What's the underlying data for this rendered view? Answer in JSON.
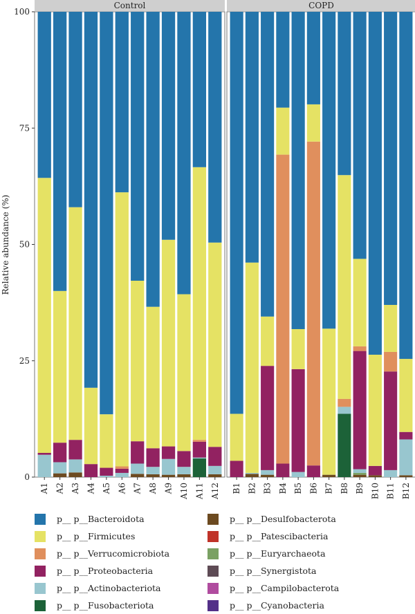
{
  "chart_data": {
    "type": "bar",
    "stacked": true,
    "ylabel": "Relative abundance (%)",
    "ylim": [
      0,
      100
    ],
    "yticks": [
      0,
      25,
      50,
      75,
      100
    ],
    "grid": false,
    "legend_position": "bottom",
    "panels": [
      {
        "name": "Control",
        "categories": [
          "A1",
          "A2",
          "A3",
          "A4",
          "A5",
          "A6",
          "A7",
          "A8",
          "A9",
          "A10",
          "A11",
          "A12"
        ],
        "series": [
          {
            "name": "p__ p__Fusobacteriota",
            "values": [
              0,
              0,
              0,
              0,
              0,
              0,
              0,
              0,
              0,
              0,
              4.0,
              0
            ]
          },
          {
            "name": "p__ p__Desulfobacterota",
            "values": [
              0,
              0.8,
              1.0,
              0,
              0,
              0,
              0.7,
              0.6,
              0.5,
              0.6,
              0,
              0.6
            ]
          },
          {
            "name": "p__ p__Actinobacteriota",
            "values": [
              4.8,
              2.4,
              2.8,
              0,
              0.3,
              0.9,
              2.2,
              1.6,
              3.4,
              1.6,
              0.2,
              1.8
            ]
          },
          {
            "name": "p__ p__Proteobacteria",
            "values": [
              0.4,
              4.2,
              4.2,
              2.8,
              1.7,
              0.9,
              4.8,
              4.0,
              2.7,
              3.4,
              3.4,
              4.1
            ]
          },
          {
            "name": "p__ p__Verrucomicrobiota",
            "values": [
              0,
              0,
              0,
              0,
              0,
              0.5,
              0,
              0,
              0,
              0,
              0.4,
              0
            ]
          },
          {
            "name": "p__ p__Firmicutes",
            "values": [
              59.1,
              32.6,
              50.0,
              16.4,
              11.5,
              58.9,
              34.5,
              30.4,
              44.4,
              33.7,
              58.6,
              43.9
            ]
          },
          {
            "name": "p__ p__Bacteroidota",
            "values": [
              35.7,
              60.0,
              42.0,
              80.8,
              86.5,
              38.8,
              57.8,
              63.4,
              49.0,
              60.7,
              33.4,
              49.6
            ]
          }
        ]
      },
      {
        "name": "COPD",
        "categories": [
          "B1",
          "B2",
          "B3",
          "B4",
          "B5",
          "B6",
          "B7",
          "B8",
          "B9",
          "B10",
          "B11",
          "B12"
        ],
        "series": [
          {
            "name": "p__ p__Fusobacteriota",
            "values": [
              0,
              0,
              0,
              0,
              0,
              0,
              0,
              13.6,
              0,
              0,
              0,
              0
            ]
          },
          {
            "name": "p__ p__Desulfobacterota",
            "values": [
              0,
              0.7,
              0.5,
              0,
              0,
              0,
              0.5,
              0,
              0.5,
              0.4,
              0,
              0.4
            ]
          },
          {
            "name": "p__ p__Euryarchaeota",
            "values": [
              0,
              0,
              0,
              0,
              0,
              0,
              0,
              0,
              0.4,
              0,
              0,
              0
            ]
          },
          {
            "name": "p__ p__Actinobacteriota",
            "values": [
              0,
              0.2,
              1.0,
              0,
              1.1,
              0,
              0,
              1.5,
              0.8,
              0,
              1.5,
              7.7
            ]
          },
          {
            "name": "p__ p__Proteobacteria",
            "values": [
              3.5,
              0,
              22.4,
              2.9,
              22.1,
              2.5,
              0,
              0,
              25.4,
              2.0,
              21.2,
              1.6
            ]
          },
          {
            "name": "p__ p__Verrucomicrobiota",
            "values": [
              0,
              0,
              0,
              66.4,
              0,
              69.6,
              0,
              1.7,
              1.0,
              0,
              4.2,
              0
            ]
          },
          {
            "name": "p__ p__Firmicutes",
            "values": [
              10.1,
              45.2,
              10.6,
              10.1,
              8.6,
              8.0,
              31.4,
              48.1,
              18.8,
              23.9,
              10.1,
              15.7
            ]
          },
          {
            "name": "p__ p__Bacteroidota",
            "values": [
              86.4,
              53.9,
              65.5,
              20.6,
              68.2,
              19.9,
              68.1,
              35.1,
              53.1,
              73.7,
              63.0,
              74.6
            ]
          }
        ]
      }
    ],
    "legend": [
      {
        "label": "p__ p__Bacteroidota",
        "color": "#2475ab"
      },
      {
        "label": "p__ p__Firmicutes",
        "color": "#e5e264"
      },
      {
        "label": "p__ p__Verrucomicrobiota",
        "color": "#e08f5d"
      },
      {
        "label": "p__ p__Proteobacteria",
        "color": "#922261"
      },
      {
        "label": "p__ p__Actinobacteriota",
        "color": "#98c6cf"
      },
      {
        "label": "p__ p__Fusobacteriota",
        "color": "#1c6238"
      },
      {
        "label": "p__ p__Desulfobacterota",
        "color": "#6c4a20"
      },
      {
        "label": "p__ p__Patescibacteria",
        "color": "#c03329"
      },
      {
        "label": "p__ p__Euryarchaeota",
        "color": "#7aa163"
      },
      {
        "label": "p__ p__Synergistota",
        "color": "#5e4b55"
      },
      {
        "label": "p__ p__Campilobacterota",
        "color": "#b04c9f"
      },
      {
        "label": "p__ p__Cyanobacteria",
        "color": "#533088"
      }
    ]
  }
}
